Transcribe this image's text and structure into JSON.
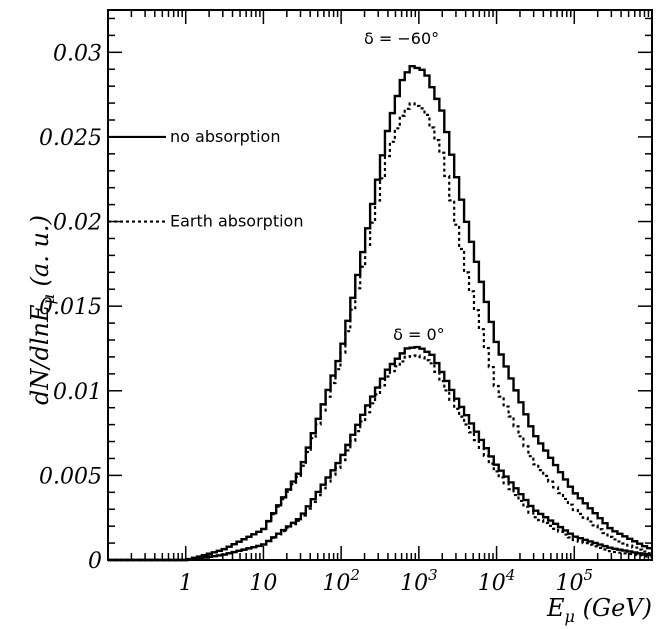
{
  "chart_data": {
    "type": "line",
    "title": "",
    "xlabel": "E_μ (GeV)",
    "ylabel": "dN/dlnE_μ (a. u.)",
    "xscale": "log",
    "xlim": [
      0.1,
      1000000
    ],
    "ylim": [
      0,
      0.0325
    ],
    "x_ticks": [
      {
        "value": 1,
        "base": "1",
        "exp": ""
      },
      {
        "value": 10,
        "base": "10",
        "exp": ""
      },
      {
        "value": 100,
        "base": "10",
        "exp": "2"
      },
      {
        "value": 1000,
        "base": "10",
        "exp": "3"
      },
      {
        "value": 10000,
        "base": "10",
        "exp": "4"
      },
      {
        "value": 100000,
        "base": "10",
        "exp": "5"
      }
    ],
    "y_ticks": [
      {
        "value": 0,
        "label": "0"
      },
      {
        "value": 0.005,
        "label": "0.005"
      },
      {
        "value": 0.01,
        "label": "0.01"
      },
      {
        "value": 0.015,
        "label": "0.015"
      },
      {
        "value": 0.02,
        "label": "0.02"
      },
      {
        "value": 0.025,
        "label": "0.025"
      },
      {
        "value": 0.03,
        "label": "0.03"
      }
    ],
    "legend": [
      {
        "label": "no absorption",
        "style": "solid",
        "y": 0.025
      },
      {
        "label": "Earth absorption",
        "style": "dotted",
        "y": 0.02
      }
    ],
    "annotations": [
      {
        "text": "δ = −60°",
        "x": 600,
        "y": 0.0305
      },
      {
        "text": "δ = 0°",
        "x": 1000,
        "y": 0.013
      }
    ],
    "series": [
      {
        "style": "solid",
        "points": [
          [
            0.15,
            0
          ],
          [
            1,
            0
          ],
          [
            1.5,
            0.0002
          ],
          [
            3,
            0.0006
          ],
          [
            10,
            0.0018
          ],
          [
            30,
            0.0053
          ],
          [
            100,
            0.0123
          ],
          [
            200,
            0.0187
          ],
          [
            400,
            0.0255
          ],
          [
            600,
            0.0283
          ],
          [
            800,
            0.0292
          ],
          [
            1200,
            0.0289
          ],
          [
            2000,
            0.0265
          ],
          [
            4000,
            0.0202
          ],
          [
            10000,
            0.0128
          ],
          [
            30000,
            0.0075
          ],
          [
            100000,
            0.004
          ],
          [
            300000,
            0.0018
          ],
          [
            900000,
            0.0007
          ]
        ]
      },
      {
        "style": "dotted",
        "points": [
          [
            0.15,
            0
          ],
          [
            1,
            0
          ],
          [
            1.5,
            0.0002
          ],
          [
            3,
            0.0006
          ],
          [
            10,
            0.0018
          ],
          [
            30,
            0.0051
          ],
          [
            100,
            0.0118
          ],
          [
            200,
            0.0178
          ],
          [
            400,
            0.024
          ],
          [
            600,
            0.0262
          ],
          [
            800,
            0.027
          ],
          [
            1200,
            0.0266
          ],
          [
            2000,
            0.024
          ],
          [
            4000,
            0.0172
          ],
          [
            10000,
            0.0102
          ],
          [
            30000,
            0.0058
          ],
          [
            100000,
            0.003
          ],
          [
            300000,
            0.0013
          ],
          [
            900000,
            0.0004
          ]
        ]
      },
      {
        "style": "solid",
        "points": [
          [
            0.15,
            0
          ],
          [
            1,
            0
          ],
          [
            1.5,
            0.0001
          ],
          [
            3,
            0.0003
          ],
          [
            10,
            0.0009
          ],
          [
            30,
            0.0025
          ],
          [
            100,
            0.006
          ],
          [
            200,
            0.0088
          ],
          [
            400,
            0.0113
          ],
          [
            700,
            0.0125
          ],
          [
            1000,
            0.0126
          ],
          [
            1500,
            0.0121
          ],
          [
            3000,
            0.0096
          ],
          [
            10000,
            0.0056
          ],
          [
            30000,
            0.003
          ],
          [
            100000,
            0.0014
          ],
          [
            300000,
            0.0007
          ],
          [
            900000,
            0.0003
          ]
        ]
      },
      {
        "style": "dotted",
        "points": [
          [
            0.15,
            0
          ],
          [
            1,
            0
          ],
          [
            1.5,
            0.0001
          ],
          [
            3,
            0.0003
          ],
          [
            10,
            0.0009
          ],
          [
            30,
            0.0024
          ],
          [
            100,
            0.0057
          ],
          [
            200,
            0.0084
          ],
          [
            400,
            0.0109
          ],
          [
            700,
            0.012
          ],
          [
            1000,
            0.0121
          ],
          [
            1500,
            0.0116
          ],
          [
            3000,
            0.009
          ],
          [
            10000,
            0.0052
          ],
          [
            30000,
            0.0026
          ],
          [
            100000,
            0.0012
          ],
          [
            300000,
            0.0005
          ],
          [
            900000,
            0.0002
          ]
        ]
      }
    ]
  }
}
